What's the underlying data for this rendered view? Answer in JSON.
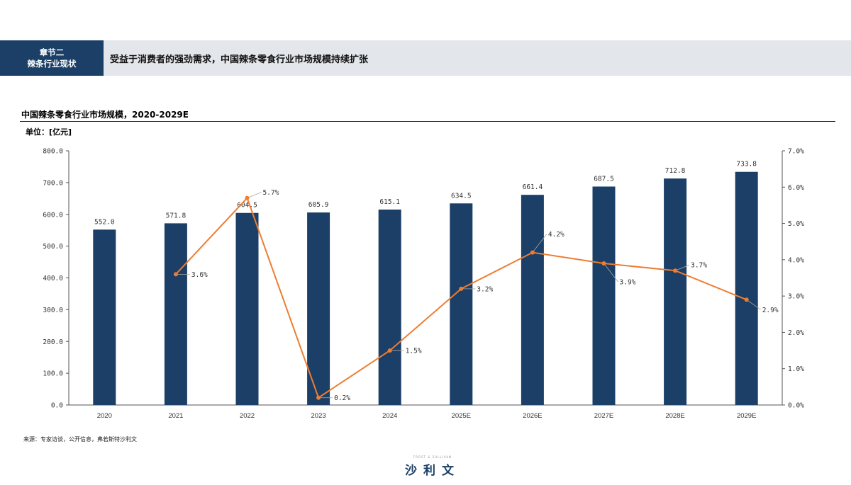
{
  "header": {
    "section_line1": "章节二",
    "section_line2": "辣条行业现状",
    "headline": "受益于消费者的强劲需求，中国辣条零食行业市场规模持续扩张"
  },
  "chart_title": "中国辣条零食行业市场规模，2020-2029E",
  "unit_label": "单位：[亿元]",
  "source": "来源：专家访谈，公开信息，弗若斯特沙利文",
  "brand": {
    "small": "FROST & SULLIVAN",
    "logo": "沙利文"
  },
  "colors": {
    "bar": "#1b3f66",
    "line": "#ee7d31",
    "header_tag": "#1b3f66",
    "header_bar": "#e3e6ea"
  },
  "chart_data": {
    "type": "bar+line",
    "categories": [
      "2020",
      "2021",
      "2022",
      "2023",
      "2024",
      "2025E",
      "2026E",
      "2027E",
      "2028E",
      "2029E"
    ],
    "bar_values": [
      552.0,
      571.8,
      604.5,
      605.9,
      615.1,
      634.5,
      661.4,
      687.5,
      712.8,
      733.8
    ],
    "bar_labels": [
      "552.0",
      "571.8",
      "604.5",
      "605.9",
      "615.1",
      "634.5",
      "661.4",
      "687.5",
      "712.8",
      "733.8"
    ],
    "line_values": [
      null,
      3.6,
      5.7,
      0.2,
      1.5,
      3.2,
      4.2,
      3.9,
      3.7,
      2.9
    ],
    "line_labels": [
      null,
      "3.6%",
      "5.7%",
      "0.2%",
      "1.5%",
      "3.2%",
      "4.2%",
      "3.9%",
      "3.7%",
      "2.9%"
    ],
    "y_left": {
      "min": 0,
      "max": 800,
      "ticks": [
        "0.0",
        "100.0",
        "200.0",
        "300.0",
        "400.0",
        "500.0",
        "600.0",
        "700.0",
        "800.0"
      ]
    },
    "y_right": {
      "min": 0,
      "max": 7,
      "ticks": [
        "0.0%",
        "1.0%",
        "2.0%",
        "3.0%",
        "4.0%",
        "5.0%",
        "6.0%",
        "7.0%"
      ]
    },
    "grid": false,
    "legend": "none"
  }
}
